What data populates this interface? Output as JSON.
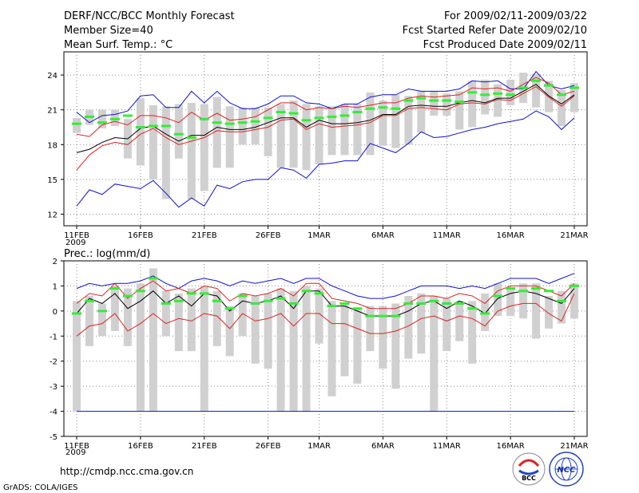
{
  "header": {
    "title": "DERF/NCC/BCC Monthly Forecast",
    "member_size": "Member Size=40",
    "variable_top": "Mean Surf. Temp.: °C",
    "period": "For 2009/02/11-2009/03/22",
    "refer_date": "Fcst Started Refer Date 2009/02/10",
    "produced_date": "Fcst Produced Date 2009/02/11"
  },
  "footer": {
    "url": "http://cmdp.ncc.cma.gov.cn",
    "grads": "GrADS: COLA/IGES",
    "logo_bcc": "BCC",
    "logo_ncc": "NCC"
  },
  "colors": {
    "box": "#d0d0d0",
    "median": "#33ee33",
    "mean": "#000000",
    "spread": "#dd2222",
    "envelope": "#1111cc"
  },
  "chart_data": [
    {
      "name": "temperature",
      "type": "box-ensemble",
      "title": "Mean Surf. Temp.: °C",
      "x_tick_labels": [
        "11FEB",
        "16FEB",
        "21FEB",
        "26FEB",
        "1MAR",
        "6MAR",
        "11MAR",
        "16MAR",
        "21MAR"
      ],
      "x_tick_days": [
        1,
        6,
        11,
        16,
        20,
        25,
        30,
        35,
        40
      ],
      "x_year_label": "2009",
      "xlim": [
        1,
        40
      ],
      "ylim": [
        11,
        26
      ],
      "y_ticks": [
        12,
        15,
        18,
        21,
        24
      ],
      "days": [
        1,
        2,
        3,
        4,
        5,
        6,
        7,
        8,
        9,
        10,
        11,
        12,
        13,
        14,
        15,
        16,
        17,
        18,
        19,
        20,
        21,
        22,
        23,
        24,
        25,
        26,
        27,
        28,
        29,
        30,
        31,
        32,
        33,
        34,
        35,
        36,
        37,
        38,
        39,
        40
      ],
      "box_low": [
        19.0,
        19.7,
        19.4,
        19.6,
        16.8,
        16.2,
        15.0,
        13.3,
        16.8,
        13.3,
        14.0,
        16.0,
        16.0,
        18.0,
        18.0,
        17.0,
        16.0,
        16.0,
        15.8,
        16.3,
        17.1,
        17.1,
        17.1,
        17.1,
        17.9,
        17.7,
        18.0,
        19.0,
        20.5,
        20.5,
        19.3,
        19.5,
        20.6,
        20.4,
        21.4,
        21.6,
        21.2,
        20.8,
        19.6,
        20.8
      ],
      "box_high": [
        20.3,
        21.0,
        21.0,
        21.0,
        20.2,
        22.0,
        21.4,
        21.3,
        21.5,
        21.6,
        21.5,
        22.1,
        21.3,
        21.2,
        21.2,
        21.2,
        21.5,
        21.8,
        21.5,
        21.3,
        21.3,
        21.5,
        21.5,
        22.5,
        21.8,
        22.3,
        22.2,
        22.6,
        22.6,
        22.4,
        22.6,
        23.5,
        23.6,
        23.2,
        23.6,
        24.2,
        24.1,
        23.5,
        22.7,
        23.3
      ],
      "median": [
        19.8,
        20.4,
        19.9,
        20.2,
        20.5,
        19.5,
        19.6,
        19.6,
        18.9,
        18.6,
        20.2,
        19.9,
        19.8,
        19.9,
        20.0,
        20.3,
        20.8,
        20.7,
        20.1,
        20.3,
        20.4,
        20.5,
        20.8,
        21.1,
        21.2,
        21.1,
        21.8,
        22.0,
        21.8,
        21.8,
        21.7,
        22.5,
        22.3,
        22.4,
        22.3,
        22.9,
        23.5,
        23.1,
        22.3,
        22.9
      ],
      "mean": [
        17.3,
        17.6,
        18.2,
        18.6,
        18.5,
        19.4,
        19.6,
        18.9,
        18.3,
        18.8,
        18.8,
        19.5,
        19.3,
        19.3,
        19.5,
        19.9,
        20.3,
        20.3,
        19.5,
        20.1,
        19.8,
        19.8,
        19.9,
        20.1,
        20.6,
        20.6,
        21.3,
        21.4,
        21.3,
        21.3,
        21.6,
        21.8,
        21.6,
        22.0,
        22.0,
        22.6,
        23.2,
        22.2,
        21.5,
        22.3
      ],
      "spread_low": [
        15.8,
        17.1,
        17.9,
        18.2,
        18.0,
        18.9,
        19.4,
        18.6,
        18.0,
        18.3,
        18.6,
        19.2,
        19.1,
        19.1,
        19.3,
        19.5,
        20.1,
        20.2,
        19.3,
        19.8,
        19.5,
        19.6,
        19.7,
        19.9,
        20.5,
        20.5,
        21.1,
        21.2,
        21.1,
        21.0,
        21.5,
        21.6,
        21.5,
        21.9,
        21.8,
        22.4,
        23.0,
        22.1,
        21.3,
        22.2
      ],
      "spread_high": [
        18.9,
        18.7,
        19.7,
        20.0,
        19.7,
        20.5,
        20.5,
        20.3,
        19.9,
        20.8,
        20.1,
        20.7,
        20.1,
        20.2,
        20.4,
        21.0,
        21.6,
        21.6,
        21.0,
        21.2,
        21.1,
        21.3,
        21.2,
        21.4,
        21.6,
        21.6,
        22.0,
        22.2,
        22.1,
        22.2,
        22.3,
        22.9,
        22.8,
        22.9,
        22.6,
        23.2,
        23.8,
        23.3,
        22.3,
        22.6
      ],
      "env_low": [
        12.7,
        14.1,
        13.7,
        14.6,
        14.4,
        14.2,
        14.9,
        13.8,
        12.6,
        13.4,
        12.7,
        14.5,
        14.2,
        14.8,
        15.0,
        15.0,
        16.0,
        15.8,
        15.1,
        16.3,
        16.4,
        16.6,
        16.6,
        18.1,
        17.7,
        17.3,
        18.1,
        19.1,
        18.6,
        18.7,
        19.0,
        19.3,
        19.5,
        19.8,
        20.0,
        20.2,
        20.9,
        20.4,
        19.3,
        20.3
      ],
      "env_high": [
        20.8,
        19.9,
        20.5,
        20.6,
        20.9,
        22.2,
        22.3,
        21.2,
        21.2,
        22.6,
        21.6,
        22.6,
        21.6,
        21.1,
        21.1,
        21.5,
        22.2,
        22.2,
        21.6,
        21.5,
        21.1,
        21.5,
        21.5,
        22.1,
        22.3,
        22.3,
        22.8,
        22.6,
        22.6,
        22.6,
        22.8,
        23.5,
        23.4,
        23.5,
        22.8,
        22.8,
        24.3,
        23.1,
        22.8,
        23.1
      ]
    },
    {
      "name": "precipitation",
      "type": "box-ensemble",
      "title": "Prec.: log(mm/d)",
      "x_tick_labels": [
        "11FEB",
        "16FEB",
        "21FEB",
        "26FEB",
        "1MAR",
        "6MAR",
        "11MAR",
        "16MAR",
        "21MAR"
      ],
      "x_tick_days": [
        1,
        6,
        11,
        16,
        20,
        25,
        30,
        35,
        40
      ],
      "x_year_label": "2009",
      "xlim": [
        1,
        40
      ],
      "ylim": [
        -5,
        2
      ],
      "y_ticks": [
        -5,
        -4,
        -3,
        -2,
        -1,
        0,
        1,
        2
      ],
      "days": [
        1,
        2,
        3,
        4,
        5,
        6,
        7,
        8,
        9,
        10,
        11,
        12,
        13,
        14,
        15,
        16,
        17,
        18,
        19,
        20,
        21,
        22,
        23,
        24,
        25,
        26,
        27,
        28,
        29,
        30,
        31,
        32,
        33,
        34,
        35,
        36,
        37,
        38,
        39,
        40
      ],
      "box_low": [
        -4.0,
        -1.4,
        -1.0,
        -0.8,
        -1.4,
        -4.0,
        -4.0,
        -1.0,
        -1.6,
        -1.6,
        -4.0,
        -1.4,
        -1.8,
        -1.0,
        -2.1,
        -2.3,
        -4.0,
        -4.0,
        -4.0,
        -1.3,
        -3.4,
        -2.6,
        -2.9,
        -1.6,
        -2.3,
        -3.1,
        -1.9,
        -1.7,
        -4.0,
        -1.6,
        -1.2,
        -2.1,
        -0.8,
        -0.2,
        -0.2,
        -0.3,
        -1.1,
        -0.7,
        -0.5,
        -0.3
      ],
      "box_high": [
        0.4,
        0.6,
        0.3,
        1.0,
        0.9,
        1.1,
        1.7,
        0.8,
        0.7,
        0.9,
        1.0,
        0.8,
        0.2,
        0.7,
        0.6,
        0.7,
        0.9,
        0.8,
        1.0,
        0.9,
        0.4,
        0.3,
        0.1,
        0.2,
        0.2,
        0.3,
        0.6,
        0.7,
        0.6,
        0.5,
        0.4,
        0.4,
        0.7,
        1.1,
        0.9,
        1.1,
        1.1,
        0.6,
        0.8,
        1.1
      ],
      "median": [
        -0.1,
        0.4,
        0.0,
        0.9,
        0.6,
        0.8,
        1.3,
        0.3,
        0.4,
        0.7,
        0.7,
        0.4,
        0.1,
        0.6,
        0.3,
        0.4,
        0.5,
        0.3,
        0.8,
        0.7,
        0.2,
        0.3,
        0.1,
        -0.2,
        -0.2,
        -0.2,
        0.3,
        0.3,
        0.4,
        0.3,
        0.3,
        0.1,
        -0.1,
        0.6,
        0.9,
        0.8,
        0.9,
        0.8,
        0.4,
        1.0
      ],
      "mean": [
        -0.1,
        0.5,
        0.3,
        0.7,
        0.1,
        0.4,
        0.8,
        0.3,
        0.6,
        0.2,
        0.7,
        0.6,
        0.0,
        0.4,
        0.3,
        0.4,
        0.6,
        0.1,
        0.8,
        0.8,
        0.2,
        0.2,
        0.0,
        -0.2,
        -0.2,
        -0.2,
        0.0,
        0.3,
        0.4,
        0.1,
        0.4,
        0.2,
        -0.1,
        0.5,
        0.7,
        0.8,
        0.7,
        0.5,
        0.3,
        0.9
      ],
      "spread_low": [
        -1.0,
        -0.6,
        -0.5,
        -0.1,
        -0.8,
        -0.5,
        -0.1,
        -0.5,
        -0.3,
        -0.4,
        -0.1,
        -0.2,
        -0.7,
        -0.1,
        -0.4,
        -0.3,
        -0.1,
        -0.6,
        -0.1,
        -0.1,
        -0.5,
        -0.5,
        -0.7,
        -0.9,
        -0.9,
        -0.8,
        -0.6,
        -0.3,
        -0.2,
        -0.4,
        -0.2,
        -0.3,
        -0.6,
        0.0,
        0.2,
        0.3,
        0.3,
        -0.1,
        -0.4,
        0.7
      ],
      "spread_high": [
        0.3,
        0.7,
        0.6,
        1.1,
        0.5,
        0.9,
        1.2,
        0.8,
        0.9,
        0.7,
        1.0,
        0.9,
        0.4,
        0.7,
        0.6,
        0.7,
        0.9,
        0.6,
        1.1,
        1.1,
        0.5,
        0.4,
        0.3,
        0.1,
        0.1,
        0.1,
        0.3,
        0.6,
        0.6,
        0.5,
        0.7,
        0.6,
        0.3,
        0.8,
        1.0,
        1.0,
        1.0,
        0.8,
        0.6,
        1.1
      ],
      "env_low": [
        -4.0,
        -4.0,
        -4.0,
        -4.0,
        -4.0,
        -4.0,
        -4.0,
        -4.0,
        -4.0,
        -4.0,
        -4.0,
        -4.0,
        -4.0,
        -4.0,
        -4.0,
        -4.0,
        -4.0,
        -4.0,
        -4.0,
        -4.0,
        -4.0,
        -4.0,
        -4.0,
        -4.0,
        -4.0,
        -4.0,
        -4.0,
        -4.0,
        -4.0,
        -4.0,
        -4.0,
        -4.0,
        -4.0,
        -4.0,
        -4.0,
        -4.0,
        -4.0,
        -4.0,
        -4.0,
        -4.0
      ],
      "env_high": [
        0.9,
        1.1,
        1.0,
        1.1,
        1.1,
        1.2,
        1.4,
        1.1,
        0.9,
        1.2,
        1.3,
        1.2,
        1.0,
        1.2,
        1.1,
        1.2,
        1.3,
        1.1,
        1.3,
        1.3,
        1.0,
        0.8,
        0.6,
        0.5,
        0.5,
        0.6,
        0.8,
        1.0,
        1.0,
        1.0,
        0.9,
        1.0,
        0.9,
        1.1,
        1.3,
        1.3,
        1.3,
        1.1,
        1.3,
        1.5
      ]
    }
  ]
}
